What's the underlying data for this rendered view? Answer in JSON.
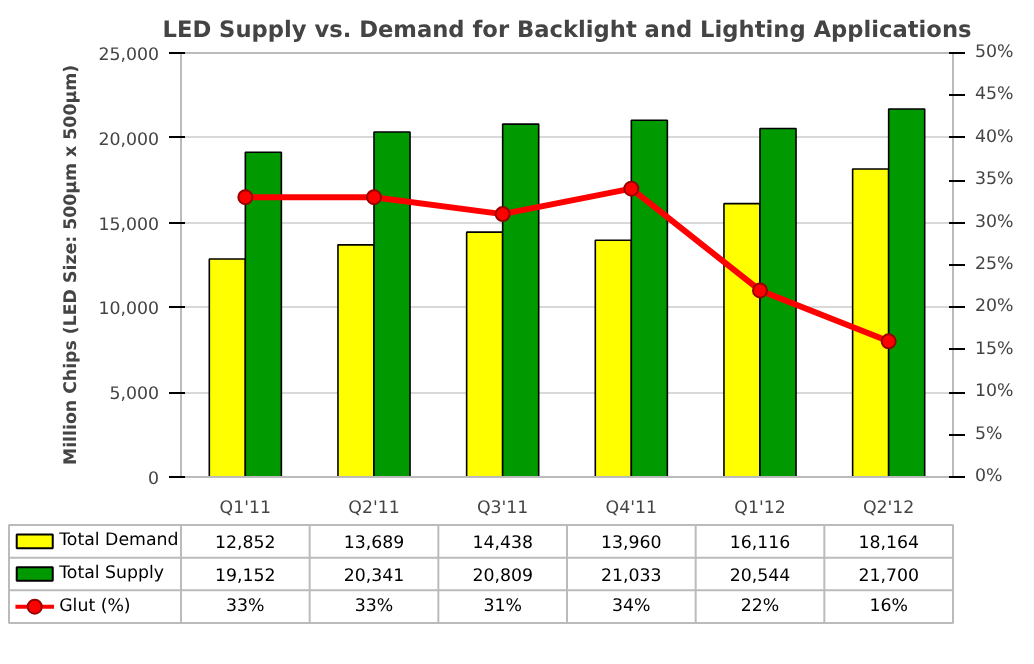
{
  "chart_data": {
    "type": "bar",
    "title": "LED Supply vs. Demand for Backlight and Lighting Applications",
    "ylabel": "Million Chips (LED Size: 500µm x 500µm)",
    "categories": [
      "Q1'11",
      "Q2'11",
      "Q3'11",
      "Q4'11",
      "Q1'12",
      "Q2'12"
    ],
    "series": [
      {
        "name": "Total Demand",
        "color": "#ffff00",
        "values": [
          12852,
          13689,
          14438,
          13960,
          16116,
          18164
        ],
        "value_labels": [
          "12,852",
          "13,689",
          "14,438",
          "13,960",
          "16,116",
          "18,164"
        ]
      },
      {
        "name": "Total Supply",
        "color": "#009900",
        "values": [
          19152,
          20341,
          20809,
          21033,
          20544,
          21700
        ],
        "value_labels": [
          "19,152",
          "20,341",
          "20,809",
          "21,033",
          "20,544",
          "21,700"
        ]
      },
      {
        "name": "Glut (%)",
        "type": "line",
        "axis": "y2",
        "color": "#ff0000",
        "marker": "circle",
        "line_style": "solid",
        "values": [
          33,
          33,
          31,
          34,
          22,
          16
        ],
        "value_labels": [
          "33%",
          "33%",
          "31%",
          "34%",
          "22%",
          "16%"
        ]
      }
    ],
    "ylim": [
      0,
      25000
    ],
    "yticks": [
      {
        "value": 0,
        "label": "0"
      },
      {
        "value": 5000,
        "label": "5,000"
      },
      {
        "value": 10000,
        "label": "10,000"
      },
      {
        "value": 15000,
        "label": "15,000"
      },
      {
        "value": 20000,
        "label": "20,000"
      },
      {
        "value": 25000,
        "label": "25,000"
      }
    ],
    "y2lim": [
      0,
      50
    ],
    "y2ticks": [
      {
        "value": 0,
        "label": "0%"
      },
      {
        "value": 5,
        "label": "5%"
      },
      {
        "value": 10,
        "label": "10%"
      },
      {
        "value": 15,
        "label": "15%"
      },
      {
        "value": 20,
        "label": "20%"
      },
      {
        "value": 25,
        "label": "25%"
      },
      {
        "value": 30,
        "label": "30%"
      },
      {
        "value": 35,
        "label": "35%"
      },
      {
        "value": 40,
        "label": "40%"
      },
      {
        "value": 45,
        "label": "45%"
      },
      {
        "value": 50,
        "label": "50%"
      }
    ],
    "grid": "y",
    "legend": "bottom"
  }
}
